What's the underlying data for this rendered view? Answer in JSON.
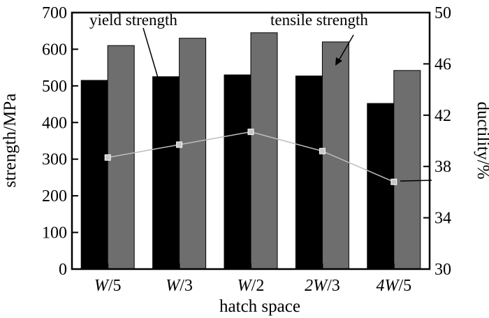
{
  "chart_data": {
    "type": "bar",
    "xlabel": "hatch space",
    "ylabel": "strength/MPa",
    "y2label": "ductility/%",
    "categories": [
      {
        "prefix": "",
        "var": "W",
        "suffix": "/5"
      },
      {
        "prefix": "",
        "var": "W",
        "suffix": "/3"
      },
      {
        "prefix": "",
        "var": "W",
        "suffix": "/2"
      },
      {
        "prefix": "2",
        "var": "W",
        "suffix": "/3"
      },
      {
        "prefix": "4",
        "var": "W",
        "suffix": "/5"
      }
    ],
    "series": [
      {
        "name": "yield strength",
        "axis": "left",
        "kind": "bar",
        "color": "#000000",
        "values": [
          515,
          525,
          530,
          527,
          452
        ]
      },
      {
        "name": "tensile strength",
        "axis": "left",
        "kind": "bar",
        "color": "#6e6e6e",
        "values": [
          610,
          630,
          645,
          620,
          542
        ]
      },
      {
        "name": "ductility",
        "axis": "right",
        "kind": "line",
        "color": "#bdbdbd",
        "values": [
          38.7,
          39.7,
          40.7,
          39.2,
          36.8
        ]
      }
    ],
    "ylim": [
      0,
      700
    ],
    "yticks": [
      0,
      100,
      200,
      300,
      400,
      500,
      600,
      700
    ],
    "y2lim": [
      30,
      50
    ],
    "y2ticks": [
      30,
      34,
      38,
      42,
      46,
      50
    ],
    "annotations": {
      "yield_label": "yield strength",
      "tensile_label": "tensile strength"
    }
  }
}
